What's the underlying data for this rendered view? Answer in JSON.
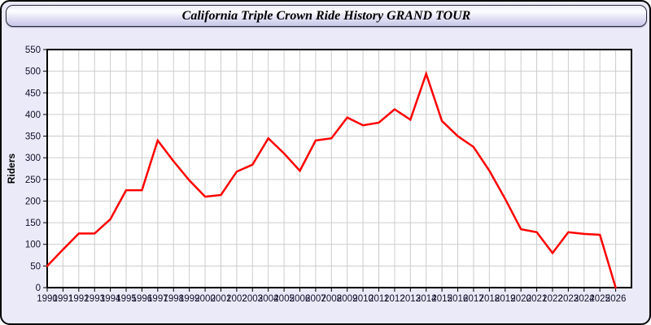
{
  "header": {
    "title": "California Triple Crown Ride History GRAND TOUR"
  },
  "colors": {
    "page_background": "#eaeaf8",
    "plot_background": "#ffffff",
    "grid": "#cccccc",
    "axis_border": "#000000",
    "line": "#ff0000",
    "tick_label": "#10102c",
    "title_text": "#000000"
  },
  "chart_data": {
    "type": "line",
    "title": "California Triple Crown Ride History GRAND TOUR",
    "xlabel": "",
    "ylabel": "Riders",
    "ylim": [
      0,
      550
    ],
    "ytick_step": 50,
    "xlim_right_border_year": 2027,
    "grid": true,
    "legend": "none",
    "series_name": "Riders",
    "categories": [
      1990,
      1991,
      1992,
      1993,
      1994,
      1995,
      1996,
      1997,
      1998,
      1999,
      2000,
      2001,
      2002,
      2003,
      2004,
      2005,
      2006,
      2007,
      2008,
      2009,
      2010,
      2011,
      2012,
      2013,
      2014,
      2015,
      2016,
      2017,
      2018,
      2019,
      2020,
      2021,
      2022,
      2023,
      2024,
      2025,
      2026
    ],
    "values": [
      50,
      88,
      125,
      125,
      158,
      225,
      225,
      340,
      292,
      248,
      210,
      214,
      268,
      284,
      345,
      310,
      270,
      340,
      345,
      393,
      375,
      381,
      412,
      388,
      494,
      385,
      350,
      325,
      270,
      205,
      135,
      128,
      80,
      128,
      124,
      122,
      0
    ]
  }
}
